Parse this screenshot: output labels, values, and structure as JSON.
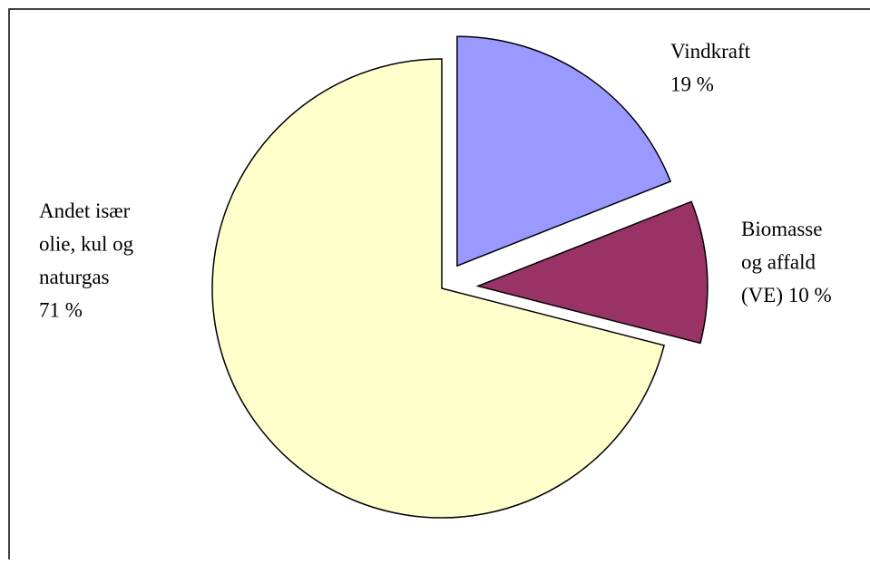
{
  "chart_data": {
    "type": "pie",
    "exploded": true,
    "border": true,
    "legend": "none",
    "slices": [
      {
        "label_lines": [
          "Andet især",
          "olie, kul og",
          "naturgas",
          "71 %"
        ],
        "value": 71,
        "color": "#ffffcc"
      },
      {
        "label_lines": [
          "Vindkraft",
          "19 %"
        ],
        "value": 19,
        "color": "#9999ff"
      },
      {
        "label_lines": [
          "Biomasse",
          "og affald",
          "(VE) 10 %"
        ],
        "value": 10,
        "color": "#993366"
      }
    ]
  }
}
